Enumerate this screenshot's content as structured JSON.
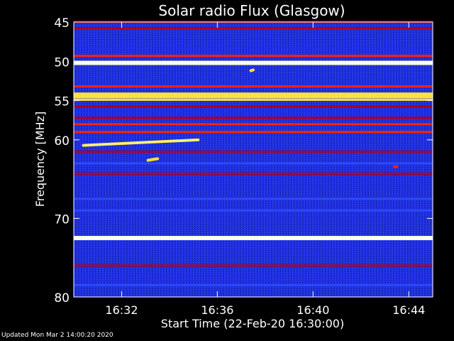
{
  "chart_data": {
    "type": "heatmap",
    "title": "Solar radio Flux (Glasgow)",
    "xlabel": "Start Time (22-Feb-20 16:30:00)",
    "ylabel": "Frequency [MHz]",
    "x_ticks": [
      "16:32",
      "16:36",
      "16:40",
      "16:44"
    ],
    "y_ticks": [
      "45",
      "50",
      "55",
      "60",
      "70",
      "80"
    ],
    "x_unit": "minutes after 16:30",
    "x_range": [
      0,
      15
    ],
    "y_range": [
      45,
      80
    ],
    "colormap": [
      "#0a0a40",
      "#1a22c0",
      "#2d48ff",
      "#b00018",
      "#ff2200",
      "#ffe040",
      "#ffffe0"
    ],
    "bands": [
      {
        "freq": 45.0,
        "intensity": 0.55
      },
      {
        "freq": 45.8,
        "intensity": 0.55
      },
      {
        "freq": 49.3,
        "intensity": 0.7
      },
      {
        "freq": 50.2,
        "intensity": 0.95
      },
      {
        "freq": 53.2,
        "intensity": 0.62
      },
      {
        "freq": 54.2,
        "intensity": 0.85
      },
      {
        "freq": 54.5,
        "intensity": 0.88
      },
      {
        "freq": 54.9,
        "intensity": 0.8
      },
      {
        "freq": 55.8,
        "intensity": 0.55
      },
      {
        "freq": 57.2,
        "intensity": 0.55
      },
      {
        "freq": 58.0,
        "intensity": 0.62
      },
      {
        "freq": 59.0,
        "intensity": 0.7
      },
      {
        "freq": 61.5,
        "intensity": 0.45
      },
      {
        "freq": 63.0,
        "intensity": 0.3
      },
      {
        "freq": 64.3,
        "intensity": 0.55
      },
      {
        "freq": 67.5,
        "intensity": 0.25
      },
      {
        "freq": 69.0,
        "intensity": 0.25
      },
      {
        "freq": 72.5,
        "intensity": 1.0
      },
      {
        "freq": 76.0,
        "intensity": 0.55
      },
      {
        "freq": 78.5,
        "intensity": 0.3
      }
    ],
    "bursts": [
      {
        "t_start": 0.4,
        "t_end": 5.2,
        "f_start": 60.7,
        "f_end": 60.0,
        "intensity": 0.9
      },
      {
        "t_start": 3.1,
        "t_end": 3.5,
        "f_start": 62.6,
        "f_end": 62.4,
        "intensity": 0.8
      },
      {
        "t_start": 7.4,
        "t_end": 7.5,
        "f_start": 51.2,
        "f_end": 51.1,
        "intensity": 0.8
      },
      {
        "t_start": 13.4,
        "t_end": 13.5,
        "f_start": 63.4,
        "f_end": 63.4,
        "intensity": 0.7
      }
    ]
  },
  "footer": "Updated Mon Mar  2 14:00:20 2020"
}
